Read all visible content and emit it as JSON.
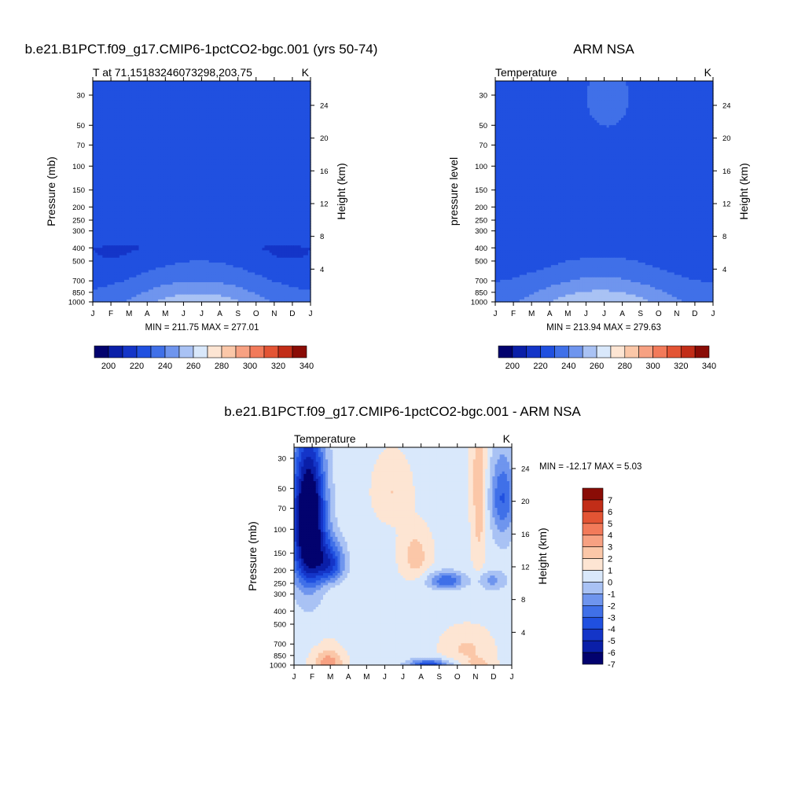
{
  "colors": {
    "full_levels": [
      "#02026e",
      "#0a1fa8",
      "#1435c8",
      "#2050e0",
      "#4070e8",
      "#6f95ee",
      "#a9c2f4",
      "#d9e8fb",
      "#fde5d3",
      "#fbc7a8",
      "#f7a182",
      "#f27a5a",
      "#e35434",
      "#c22d18",
      "#8a0c06"
    ],
    "diff_levels": [
      "#02026e",
      "#0a1fa8",
      "#1435c8",
      "#2050e0",
      "#4070e8",
      "#6f95ee",
      "#a9c2f4",
      "#d9e8fb",
      "#fde5d3",
      "#fbc7a8",
      "#f7a182",
      "#f27a5a",
      "#e35434",
      "#c22d18",
      "#8a0c06"
    ]
  },
  "titles": {
    "top_left": "b.e21.B1PCT.f09_g17.CMIP6-1pctCO2-bgc.001 (yrs 50-74)",
    "top_right": "ARM NSA",
    "bottom": "b.e21.B1PCT.f09_g17.CMIP6-1pctCO2-bgc.001 - ARM NSA"
  },
  "chart_data": [
    {
      "type": "heatmap",
      "panel": "model",
      "subtitle_left": "T at 71.15183246073298,203.75",
      "subtitle_right": "K",
      "ylabel": "Pressure (mb)",
      "y2label": "Height (km)",
      "x_tick_labels": [
        "J",
        "F",
        "M",
        "A",
        "M",
        "J",
        "J",
        "A",
        "S",
        "O",
        "N",
        "D",
        "J"
      ],
      "y_ticks": [
        30,
        50,
        70,
        100,
        150,
        200,
        250,
        300,
        400,
        500,
        700,
        850,
        1000
      ],
      "y2_ticks": [
        24,
        20,
        16,
        12,
        8,
        4
      ],
      "ylim": [
        1000,
        25
      ],
      "stats": "MIN = 211.75 MAX = 277.01",
      "colorbar_labels": [
        "200",
        "220",
        "240",
        "260",
        "280",
        "300",
        "320",
        "340"
      ],
      "levels": [
        195,
        200,
        210,
        220,
        230,
        240,
        250,
        260,
        270,
        280,
        290,
        300,
        310,
        320,
        330,
        340
      ],
      "min": 211.75,
      "max": 277.01
    },
    {
      "type": "heatmap",
      "panel": "obs",
      "subtitle_left": "Temperature",
      "subtitle_right": "K",
      "ylabel": "pressure level",
      "y2label": "Height (km)",
      "x_tick_labels": [
        "J",
        "F",
        "M",
        "A",
        "M",
        "J",
        "J",
        "A",
        "S",
        "O",
        "N",
        "D",
        "J"
      ],
      "y_ticks": [
        30,
        50,
        70,
        100,
        150,
        200,
        250,
        300,
        400,
        500,
        700,
        850,
        1000
      ],
      "y2_ticks": [
        24,
        20,
        16,
        12,
        8,
        4
      ],
      "ylim": [
        1000,
        25
      ],
      "stats": "MIN = 213.94 MAX = 279.63",
      "colorbar_labels": [
        "200",
        "220",
        "240",
        "260",
        "280",
        "300",
        "320",
        "340"
      ],
      "levels": [
        195,
        200,
        210,
        220,
        230,
        240,
        250,
        260,
        270,
        280,
        290,
        300,
        310,
        320,
        330,
        340
      ],
      "min": 213.94,
      "max": 279.63
    },
    {
      "type": "heatmap",
      "panel": "difference",
      "subtitle_left": "Temperature",
      "subtitle_right": "K",
      "ylabel": "Pressure (mb)",
      "y2label": "Height (km)",
      "x_tick_labels": [
        "J",
        "F",
        "M",
        "A",
        "M",
        "J",
        "J",
        "A",
        "S",
        "O",
        "N",
        "D",
        "J"
      ],
      "y_ticks": [
        30,
        50,
        70,
        100,
        150,
        200,
        250,
        300,
        400,
        500,
        700,
        850,
        1000
      ],
      "y2_ticks": [
        24,
        20,
        16,
        12,
        8,
        4
      ],
      "ylim": [
        1000,
        25
      ],
      "stats": "MIN = -12.17 MAX =   5.03",
      "colorbar_labels": [
        "7",
        "6",
        "5",
        "4",
        "3",
        "2",
        "1",
        "0",
        "-1",
        "-2",
        "-3",
        "-4",
        "-5",
        "-6",
        "-7"
      ],
      "levels": [
        -7,
        -6,
        -5,
        -4,
        -3,
        -2,
        -1,
        0,
        1,
        2,
        3,
        4,
        5,
        6,
        7
      ],
      "min": -12.17,
      "max": 5.03
    }
  ]
}
